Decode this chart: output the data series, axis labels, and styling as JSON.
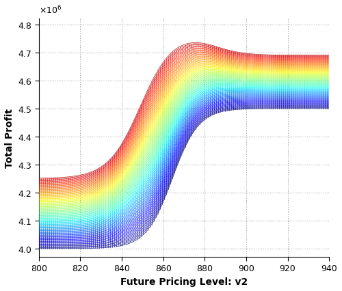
{
  "xlabel": "Future Pricing Level: v2",
  "ylabel": "Total Profit",
  "x_min": 800,
  "x_max": 940,
  "y_min": 3970000.0,
  "y_max": 4820000.0,
  "ytick_min": 4000000.0,
  "ytick_max": 4800000.0,
  "ytick_step": 100000.0,
  "xticks": [
    800,
    820,
    840,
    860,
    880,
    900,
    920,
    940
  ],
  "scale_factor": 1000000.0,
  "num_curves": 80,
  "num_vlines": 140,
  "background_color": "#ffffff",
  "grid_color": "#999999"
}
